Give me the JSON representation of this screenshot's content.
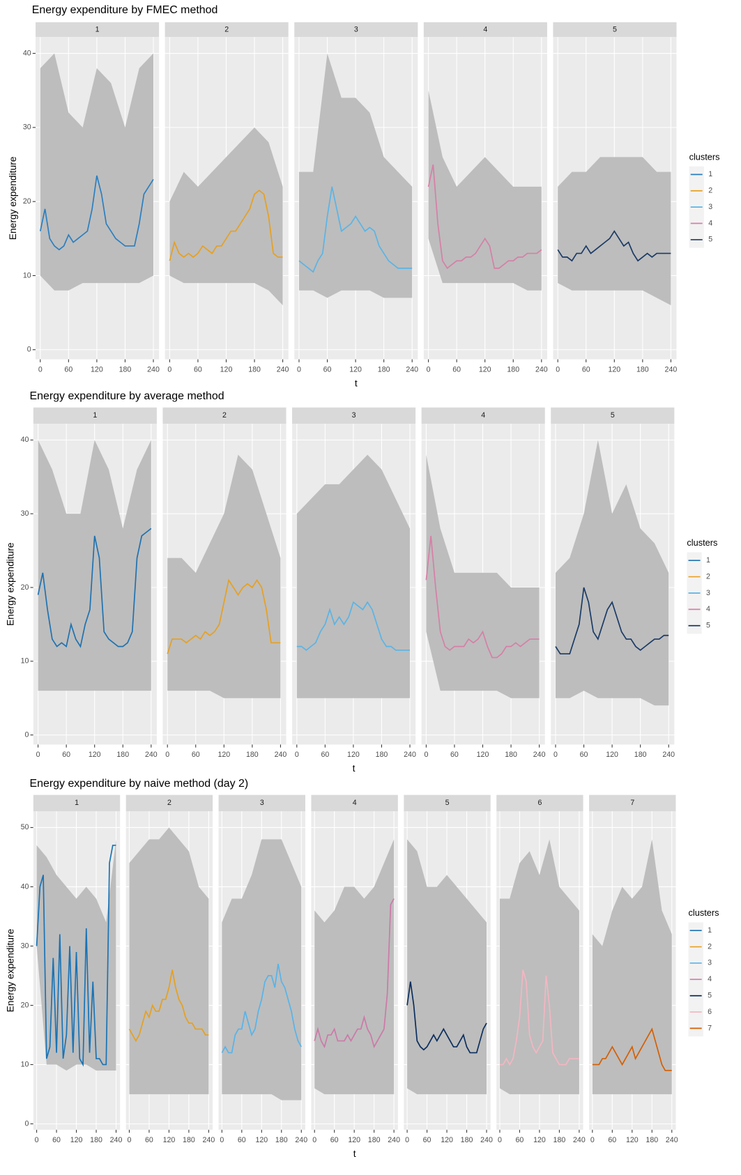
{
  "chart_data": [
    {
      "type": "line",
      "title": "Energy expenditure by FMEC method",
      "xlabel": "t",
      "ylabel": "Energy expenditure",
      "legend_title": "clusters",
      "xlim": [
        -10,
        252
      ],
      "xticks": [
        0,
        60,
        120,
        180,
        240
      ],
      "ylim": [
        -1.3,
        42.2
      ],
      "yticks": [
        0,
        10,
        20,
        30,
        40
      ],
      "grid": true,
      "band_color": "#bdbdbd",
      "x": [
        0,
        10,
        20,
        30,
        40,
        50,
        60,
        70,
        80,
        90,
        100,
        110,
        120,
        130,
        140,
        150,
        160,
        170,
        180,
        190,
        200,
        210,
        220,
        230,
        240
      ],
      "band_x": [
        0,
        30,
        60,
        90,
        120,
        150,
        180,
        210,
        240
      ],
      "series": [
        {
          "name": "1",
          "color": "#2a7fc0",
          "values": [
            16,
            19,
            15,
            14,
            13.5,
            14,
            15.5,
            14.5,
            15,
            15.5,
            16,
            19,
            23.5,
            21,
            17,
            16,
            15,
            14.5,
            14,
            14,
            14,
            17,
            21,
            22,
            23
          ],
          "low": [
            10,
            8,
            8,
            9,
            9,
            9,
            9,
            9,
            10
          ],
          "high": [
            38,
            40,
            32,
            30,
            38,
            36,
            30,
            38,
            40
          ]
        },
        {
          "name": "2",
          "color": "#e6a020",
          "values": [
            12,
            14.5,
            13,
            12.5,
            13,
            12.5,
            13,
            14,
            13.5,
            13,
            14,
            14,
            15,
            16,
            16,
            17,
            18,
            19,
            21,
            21.5,
            21,
            18,
            13,
            12.5,
            12.5
          ],
          "low": [
            10,
            9,
            9,
            9,
            9,
            9,
            9,
            8,
            6
          ],
          "high": [
            20,
            24,
            22,
            24,
            26,
            28,
            30,
            28,
            22
          ]
        },
        {
          "name": "3",
          "color": "#5ab4e5",
          "values": [
            12,
            11.5,
            11,
            10.5,
            12,
            13,
            18,
            22,
            19,
            16,
            16.5,
            17,
            18,
            17,
            16,
            16.5,
            16,
            14,
            13,
            12,
            11.5,
            11,
            11,
            11,
            11
          ],
          "low": [
            8,
            8,
            7,
            8,
            8,
            8,
            7,
            7,
            7
          ],
          "high": [
            24,
            24,
            40,
            34,
            34,
            32,
            26,
            24,
            22
          ]
        },
        {
          "name": "4",
          "color": "#d67fa6",
          "values": [
            22,
            25,
            17,
            12,
            11,
            11.5,
            12,
            12,
            12.5,
            12.5,
            13,
            14,
            15,
            14,
            11,
            11,
            11.5,
            12,
            12,
            12.5,
            12.5,
            13,
            13,
            13,
            13.5
          ],
          "low": [
            15,
            9,
            9,
            9,
            9,
            9,
            9,
            8,
            8
          ],
          "high": [
            35,
            26,
            22,
            24,
            26,
            24,
            22,
            22,
            22
          ]
        },
        {
          "name": "5",
          "color": "#1a3a66",
          "values": [
            13.5,
            12.5,
            12.5,
            12,
            13,
            13,
            14,
            13,
            13.5,
            14,
            14.5,
            15,
            16,
            15,
            14,
            14.5,
            13,
            12,
            12.5,
            13,
            12.5,
            13,
            13,
            13,
            13
          ],
          "low": [
            9,
            8,
            8,
            8,
            8,
            8,
            8,
            7,
            6
          ],
          "high": [
            22,
            24,
            24,
            26,
            26,
            26,
            26,
            24,
            24
          ]
        }
      ]
    },
    {
      "type": "line",
      "title": "Energy expenditure by average method",
      "xlabel": "t",
      "ylabel": "Energy expenditure",
      "legend_title": "clusters",
      "xlim": [
        -10,
        252
      ],
      "xticks": [
        0,
        60,
        120,
        180,
        240
      ],
      "ylim": [
        -1.3,
        42.2
      ],
      "yticks": [
        0,
        10,
        20,
        30,
        40
      ],
      "grid": true,
      "band_color": "#bdbdbd",
      "x": [
        0,
        10,
        20,
        30,
        40,
        50,
        60,
        70,
        80,
        90,
        100,
        110,
        120,
        130,
        140,
        150,
        160,
        170,
        180,
        190,
        200,
        210,
        220,
        230,
        240
      ],
      "band_x": [
        0,
        30,
        60,
        90,
        120,
        150,
        180,
        210,
        240
      ],
      "series": [
        {
          "name": "1",
          "color": "#1f72b0",
          "values": [
            19,
            22,
            17,
            13,
            12,
            12.5,
            12,
            15,
            13,
            12,
            15,
            17,
            27,
            24,
            14,
            13,
            12.5,
            12,
            12,
            12.5,
            14,
            24,
            27,
            27.5,
            28
          ],
          "low": [
            6,
            6,
            6,
            6,
            6,
            6,
            6,
            6,
            6
          ],
          "high": [
            40,
            36,
            30,
            30,
            40,
            36,
            28,
            36,
            40
          ]
        },
        {
          "name": "2",
          "color": "#e6a020",
          "values": [
            11,
            13,
            13,
            13,
            12.5,
            13,
            13.5,
            13,
            14,
            13.5,
            14,
            15,
            18,
            21,
            20,
            19,
            20,
            20.5,
            20,
            21,
            20,
            17,
            12.5,
            12.5,
            12.5
          ],
          "low": [
            6,
            6,
            6,
            6,
            5,
            5,
            5,
            5,
            5
          ],
          "high": [
            24,
            24,
            22,
            26,
            30,
            38,
            36,
            30,
            24
          ]
        },
        {
          "name": "3",
          "color": "#5ab4e5",
          "values": [
            12,
            12,
            11.5,
            12,
            12.5,
            14,
            15,
            17,
            15,
            16,
            15,
            16,
            18,
            17.5,
            17,
            18,
            17,
            15,
            13,
            12,
            12,
            11.5,
            11.5,
            11.5,
            11.5
          ],
          "low": [
            5,
            5,
            5,
            5,
            5,
            5,
            5,
            5,
            5
          ],
          "high": [
            30,
            32,
            34,
            34,
            36,
            38,
            36,
            32,
            28
          ]
        },
        {
          "name": "4",
          "color": "#d67fa6",
          "values": [
            21,
            27,
            20,
            14,
            12,
            11.5,
            12,
            12,
            12,
            13,
            12.5,
            13,
            14,
            12,
            10.5,
            10.5,
            11,
            12,
            12,
            12.5,
            12,
            12.5,
            13,
            13,
            13
          ],
          "low": [
            14,
            6,
            6,
            6,
            6,
            6,
            5,
            5,
            5
          ],
          "high": [
            38,
            28,
            22,
            22,
            22,
            22,
            20,
            20,
            20
          ]
        },
        {
          "name": "5",
          "color": "#1a3a66",
          "values": [
            12,
            11,
            11,
            11,
            13,
            15,
            20,
            18,
            14,
            13,
            15,
            17,
            18,
            16,
            14,
            13,
            13,
            12,
            11.5,
            12,
            12.5,
            13,
            13,
            13.5,
            13.5
          ],
          "low": [
            5,
            5,
            6,
            5,
            5,
            5,
            5,
            4,
            4
          ],
          "high": [
            22,
            24,
            30,
            40,
            30,
            34,
            28,
            26,
            22
          ]
        }
      ]
    },
    {
      "type": "line",
      "title": "Energy expenditure by naive method (day 2)",
      "xlabel": "t",
      "ylabel": "Energy expenditure",
      "legend_title": "clusters",
      "xlim": [
        -10,
        252
      ],
      "xticks": [
        0,
        60,
        120,
        180,
        240
      ],
      "ylim": [
        -1,
        52.75
      ],
      "yticks": [
        0,
        10,
        20,
        30,
        40,
        50
      ],
      "grid": true,
      "band_color": "#bdbdbd",
      "x": [
        0,
        10,
        20,
        30,
        40,
        50,
        60,
        70,
        80,
        90,
        100,
        110,
        120,
        130,
        140,
        150,
        160,
        170,
        180,
        190,
        200,
        210,
        220,
        230,
        240
      ],
      "band_x": [
        0,
        30,
        60,
        90,
        120,
        150,
        180,
        210,
        240
      ],
      "series": [
        {
          "name": "1",
          "color": "#1a73b4",
          "values": [
            30,
            40,
            42,
            11,
            13,
            28,
            12,
            32,
            11,
            15,
            30,
            12,
            29,
            11,
            10,
            33,
            12,
            24,
            11,
            11,
            10,
            10,
            44,
            47,
            47
          ],
          "low": [
            30,
            10,
            10,
            9,
            10,
            10,
            9,
            9,
            9
          ],
          "high": [
            47,
            45,
            42,
            40,
            38,
            40,
            38,
            34,
            48
          ]
        },
        {
          "name": "2",
          "color": "#e6a01e",
          "values": [
            16,
            15,
            14,
            15,
            17,
            19,
            18,
            20,
            19,
            19,
            21,
            21,
            23,
            26,
            23,
            21,
            20,
            18,
            17,
            17,
            16,
            16,
            16,
            15,
            15
          ],
          "low": [
            5,
            5,
            5,
            5,
            5,
            5,
            5,
            5,
            5
          ],
          "high": [
            44,
            46,
            48,
            48,
            50,
            48,
            46,
            40,
            38
          ]
        },
        {
          "name": "3",
          "color": "#56b4e9",
          "values": [
            12,
            13,
            12,
            12,
            15,
            16,
            16,
            19,
            17,
            15,
            16,
            19,
            21,
            24,
            25,
            25,
            23,
            27,
            24,
            23,
            21,
            19,
            16,
            14,
            13
          ],
          "low": [
            5,
            5,
            5,
            5,
            5,
            5,
            4,
            4,
            4
          ],
          "high": [
            34,
            38,
            38,
            42,
            48,
            48,
            48,
            44,
            40
          ]
        },
        {
          "name": "4",
          "color": "#cc79a7",
          "values": [
            14,
            16,
            14,
            13,
            15,
            15,
            16,
            14,
            14,
            14,
            15,
            14,
            15,
            16,
            16,
            18,
            16,
            15,
            13,
            14,
            15,
            16,
            22,
            37,
            38
          ],
          "low": [
            6,
            5,
            5,
            5,
            5,
            5,
            5,
            5,
            5
          ],
          "high": [
            36,
            34,
            36,
            40,
            40,
            38,
            40,
            44,
            48
          ]
        },
        {
          "name": "5",
          "color": "#0b2e5e",
          "values": [
            20,
            24,
            20,
            14,
            13,
            12.5,
            13,
            14,
            15,
            14,
            15,
            16,
            15,
            14,
            13,
            13,
            14,
            15,
            13,
            12,
            12,
            12,
            14,
            16,
            17
          ],
          "low": [
            6,
            5,
            5,
            5,
            5,
            5,
            5,
            5,
            5
          ],
          "high": [
            48,
            46,
            40,
            40,
            42,
            40,
            38,
            36,
            34
          ]
        },
        {
          "name": "6",
          "color": "#f4b6c2",
          "values": [
            10,
            10,
            11,
            10,
            11,
            14,
            18,
            26,
            24,
            15,
            13,
            12,
            13,
            14,
            25,
            20,
            12,
            11,
            10,
            10,
            10,
            11,
            11,
            11,
            11
          ],
          "low": [
            6,
            5,
            5,
            5,
            5,
            5,
            5,
            5,
            5
          ],
          "high": [
            38,
            38,
            44,
            46,
            42,
            48,
            40,
            38,
            36
          ]
        },
        {
          "name": "7",
          "color": "#d55e00",
          "values": [
            10,
            10,
            10,
            11,
            11,
            12,
            13,
            12,
            11,
            10,
            11,
            12,
            13,
            11,
            12,
            13,
            14,
            15,
            16,
            14,
            12,
            10,
            9,
            9,
            9
          ],
          "low": [
            5,
            5,
            5,
            5,
            5,
            5,
            5,
            5,
            5
          ],
          "high": [
            32,
            30,
            36,
            40,
            38,
            40,
            48,
            36,
            32
          ]
        }
      ]
    }
  ]
}
